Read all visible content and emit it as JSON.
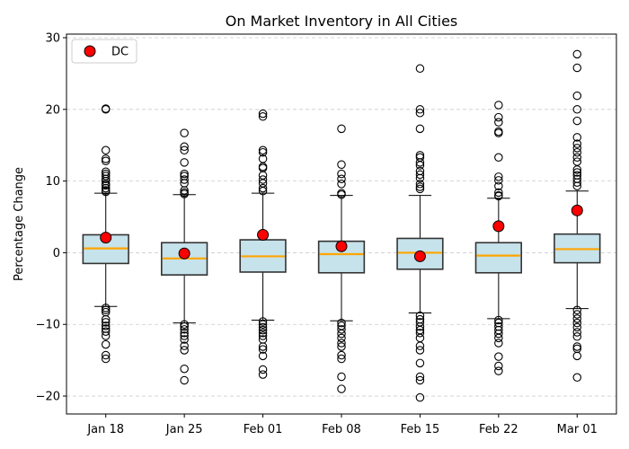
{
  "chart_data": {
    "type": "box",
    "title": "On Market Inventory in All Cities",
    "xlabel": "",
    "ylabel": "Percentage Change",
    "ylim": [
      -22.5,
      30.5
    ],
    "yticks": [
      -20,
      -10,
      0,
      10,
      20,
      30
    ],
    "grid": "horizontal-dashed",
    "legend": {
      "position": "top-left",
      "entries": [
        {
          "label": "DC",
          "marker": "red-circle"
        }
      ]
    },
    "colors": {
      "box_fill": "#c6e2eb",
      "box_edge": "#333333",
      "median": "#ffa500",
      "highlight": "#ff0000",
      "grid": "#cccccc"
    },
    "categories": [
      "Jan 18",
      "Jan 25",
      "Feb 01",
      "Feb 08",
      "Feb 15",
      "Feb 22",
      "Mar 01"
    ],
    "boxes": [
      {
        "q1": -1.5,
        "median": 0.6,
        "q3": 2.5,
        "whisker_low": -7.5,
        "whisker_high": 8.3,
        "outliers": [
          20.1,
          20.0,
          14.3,
          13.1,
          12.8,
          11.3,
          11.0,
          10.7,
          10.3,
          10.0,
          9.6,
          9.4,
          9.0,
          8.7,
          8.5,
          -7.7,
          -8.0,
          -8.3,
          -9.3,
          -9.7,
          -10.2,
          -10.6,
          -11.0,
          -11.6,
          -12.8,
          -14.3,
          -14.8
        ]
      },
      {
        "q1": -3.1,
        "median": -0.8,
        "q3": 1.4,
        "whisker_low": -9.8,
        "whisker_high": 8.1,
        "outliers": [
          16.7,
          14.8,
          14.3,
          12.6,
          11.0,
          10.7,
          10.2,
          9.7,
          8.7,
          8.4,
          8.2,
          -10.0,
          -10.3,
          -10.7,
          -11.2,
          -11.6,
          -12.1,
          -13.0,
          -13.6,
          -16.2,
          -17.8
        ]
      },
      {
        "q1": -2.7,
        "median": -0.5,
        "q3": 1.8,
        "whisker_low": -9.4,
        "whisker_high": 8.3,
        "outliers": [
          19.4,
          19.0,
          14.3,
          14.0,
          13.1,
          12.0,
          11.8,
          10.8,
          10.2,
          9.7,
          9.0,
          8.6,
          -9.6,
          -10.0,
          -10.4,
          -10.8,
          -11.2,
          -11.6,
          -12.1,
          -13.1,
          -13.5,
          -14.4,
          -16.3,
          -17.0
        ]
      },
      {
        "q1": -2.8,
        "median": -0.2,
        "q3": 1.6,
        "whisker_low": -9.5,
        "whisker_high": 8.0,
        "outliers": [
          17.3,
          12.3,
          11.0,
          10.3,
          9.6,
          8.3,
          8.1,
          -9.8,
          -10.2,
          -10.7,
          -11.3,
          -11.9,
          -12.6,
          -13.1,
          -14.3,
          -14.8,
          -17.3,
          -19.0
        ]
      },
      {
        "q1": -2.3,
        "median": 0.0,
        "q3": 2.0,
        "whisker_low": -8.4,
        "whisker_high": 8.0,
        "outliers": [
          25.7,
          20.0,
          19.5,
          17.3,
          13.6,
          13.3,
          12.6,
          12.2,
          11.4,
          10.9,
          10.4,
          9.6,
          9.2,
          8.9,
          -8.8,
          -9.3,
          -9.7,
          -10.3,
          -10.8,
          -11.2,
          -11.9,
          -13.0,
          -13.6,
          -15.4,
          -17.3,
          -17.8,
          -20.2
        ]
      },
      {
        "q1": -2.8,
        "median": -0.4,
        "q3": 1.4,
        "whisker_low": -9.2,
        "whisker_high": 7.6,
        "outliers": [
          20.6,
          18.9,
          18.2,
          16.9,
          16.7,
          13.3,
          10.6,
          10.1,
          9.3,
          8.4,
          8.0,
          7.9,
          -9.4,
          -9.8,
          -10.3,
          -10.8,
          -11.3,
          -11.9,
          -12.6,
          -14.5,
          -15.8,
          -16.5
        ]
      },
      {
        "q1": -1.4,
        "median": 0.5,
        "q3": 2.6,
        "whisker_low": -7.8,
        "whisker_high": 8.6,
        "outliers": [
          27.7,
          25.8,
          21.9,
          20.0,
          18.4,
          16.1,
          15.2,
          14.6,
          14.0,
          13.3,
          12.7,
          11.6,
          11.2,
          10.8,
          10.3,
          9.8,
          9.3,
          -8.0,
          -8.6,
          -9.2,
          -9.8,
          -10.4,
          -11.1,
          -11.7,
          -13.1,
          -13.4,
          -14.4,
          -17.4
        ]
      }
    ],
    "highlight_series": {
      "name": "DC",
      "values": [
        2.1,
        -0.1,
        2.5,
        0.9,
        -0.5,
        3.7,
        5.9
      ]
    }
  }
}
